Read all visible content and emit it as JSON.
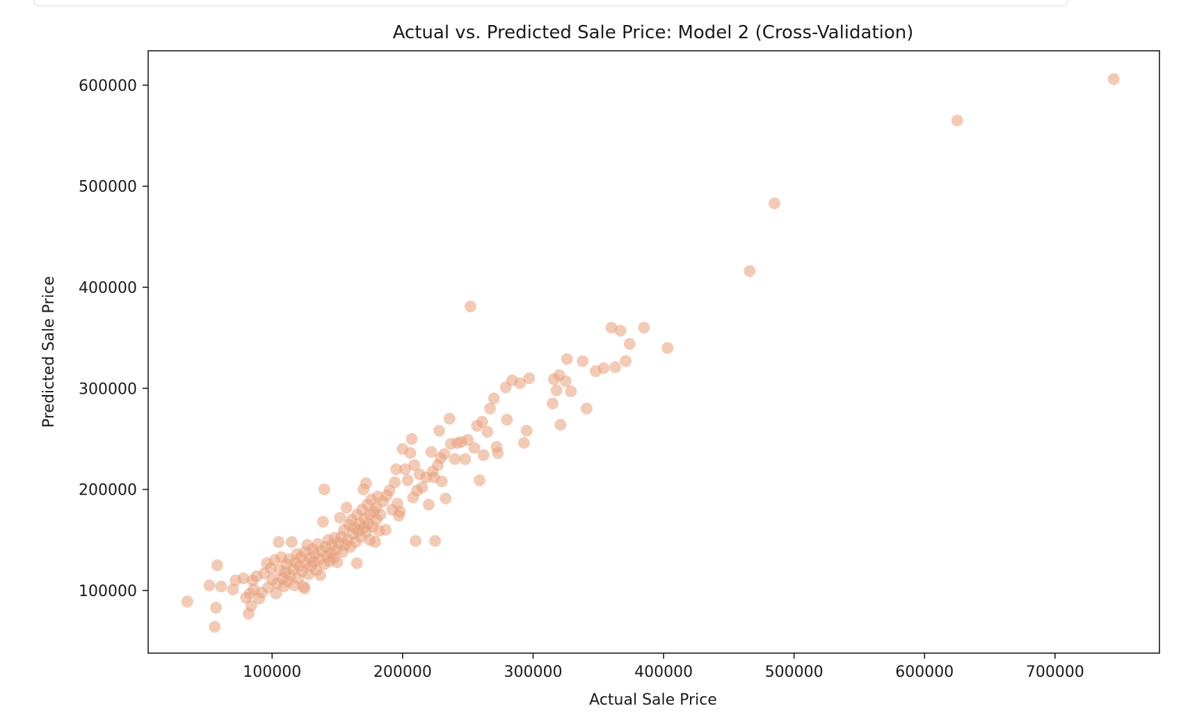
{
  "chart_data": {
    "type": "scatter",
    "title": "Actual vs. Predicted Sale Price: Model 2 (Cross-Validation)",
    "xlabel": "Actual Sale Price",
    "ylabel": "Predicted Sale Price",
    "xlim": [
      5000,
      780000
    ],
    "ylim": [
      38000,
      634000
    ],
    "xticks": [
      100000,
      200000,
      300000,
      400000,
      500000,
      600000,
      700000
    ],
    "yticks": [
      100000,
      200000,
      300000,
      400000,
      500000,
      600000
    ],
    "xtick_labels": [
      "100000",
      "200000",
      "300000",
      "400000",
      "500000",
      "600000",
      "700000"
    ],
    "ytick_labels": [
      "100000",
      "200000",
      "300000",
      "400000",
      "500000",
      "600000"
    ],
    "grid": false,
    "marker_color": "#e8a07c",
    "marker_alpha": 0.55,
    "points": [
      [
        35000,
        89000
      ],
      [
        52000,
        105000
      ],
      [
        56000,
        64000
      ],
      [
        57000,
        83000
      ],
      [
        58000,
        125000
      ],
      [
        61000,
        104000
      ],
      [
        70000,
        101000
      ],
      [
        72000,
        110000
      ],
      [
        78000,
        112000
      ],
      [
        80000,
        93000
      ],
      [
        82000,
        77000
      ],
      [
        83000,
        97000
      ],
      [
        84000,
        85000
      ],
      [
        85000,
        110000
      ],
      [
        86000,
        101000
      ],
      [
        88000,
        114000
      ],
      [
        90000,
        92000
      ],
      [
        92000,
        98000
      ],
      [
        94000,
        117000
      ],
      [
        96000,
        127000
      ],
      [
        97000,
        103000
      ],
      [
        99000,
        122000
      ],
      [
        100000,
        111000
      ],
      [
        102000,
        130000
      ],
      [
        103000,
        97000
      ],
      [
        104000,
        107000
      ],
      [
        105000,
        148000
      ],
      [
        106000,
        120000
      ],
      [
        107000,
        133000
      ],
      [
        108000,
        112000
      ],
      [
        109000,
        104000
      ],
      [
        110000,
        118000
      ],
      [
        111000,
        126000
      ],
      [
        112000,
        109000
      ],
      [
        113000,
        131000
      ],
      [
        114000,
        115000
      ],
      [
        115000,
        148000
      ],
      [
        116000,
        121000
      ],
      [
        117000,
        105000
      ],
      [
        118000,
        128000
      ],
      [
        119000,
        136000
      ],
      [
        120000,
        112000
      ],
      [
        121000,
        124000
      ],
      [
        122000,
        133000
      ],
      [
        123000,
        119000
      ],
      [
        124000,
        104000
      ],
      [
        125000,
        138000
      ],
      [
        125000,
        102000
      ],
      [
        126000,
        127000
      ],
      [
        127000,
        145000
      ],
      [
        128000,
        116000
      ],
      [
        129000,
        132000
      ],
      [
        130000,
        124000
      ],
      [
        131000,
        141000
      ],
      [
        132000,
        128000
      ],
      [
        133000,
        136000
      ],
      [
        134000,
        120000
      ],
      [
        135000,
        146000
      ],
      [
        136000,
        131000
      ],
      [
        137000,
        115000
      ],
      [
        138000,
        139000
      ],
      [
        139000,
        168000
      ],
      [
        140000,
        126000
      ],
      [
        140000,
        200000
      ],
      [
        141000,
        143000
      ],
      [
        142000,
        134000
      ],
      [
        143000,
        150000
      ],
      [
        144000,
        129000
      ],
      [
        145000,
        137000
      ],
      [
        146000,
        145000
      ],
      [
        147000,
        132000
      ],
      [
        148000,
        152000
      ],
      [
        149000,
        140000
      ],
      [
        150000,
        128000
      ],
      [
        151000,
        147000
      ],
      [
        152000,
        172000
      ],
      [
        153000,
        153000
      ],
      [
        154000,
        138000
      ],
      [
        155000,
        160000
      ],
      [
        156000,
        145000
      ],
      [
        157000,
        182000
      ],
      [
        158000,
        150000
      ],
      [
        159000,
        165000
      ],
      [
        160000,
        143000
      ],
      [
        161000,
        170000
      ],
      [
        162000,
        156000
      ],
      [
        163000,
        162000
      ],
      [
        164000,
        148000
      ],
      [
        165000,
        175000
      ],
      [
        165000,
        127000
      ],
      [
        166000,
        159000
      ],
      [
        167000,
        166000
      ],
      [
        168000,
        153000
      ],
      [
        169000,
        180000
      ],
      [
        170000,
        162000
      ],
      [
        170000,
        200000
      ],
      [
        171000,
        171000
      ],
      [
        172000,
        158000
      ],
      [
        172000,
        206000
      ],
      [
        173000,
        185000
      ],
      [
        174000,
        166000
      ],
      [
        175000,
        150000
      ],
      [
        175000,
        175000
      ],
      [
        176000,
        190000
      ],
      [
        177000,
        163000
      ],
      [
        178000,
        178000
      ],
      [
        179000,
        148000
      ],
      [
        180000,
        182000
      ],
      [
        180000,
        170000
      ],
      [
        181000,
        193000
      ],
      [
        182000,
        159000
      ],
      [
        183000,
        175000
      ],
      [
        185000,
        188000
      ],
      [
        187000,
        160000
      ],
      [
        188000,
        194000
      ],
      [
        190000,
        199000
      ],
      [
        192000,
        180000
      ],
      [
        194000,
        207000
      ],
      [
        195000,
        220000
      ],
      [
        196000,
        186000
      ],
      [
        197000,
        174000
      ],
      [
        198000,
        178000
      ],
      [
        200000,
        240000
      ],
      [
        202000,
        220000
      ],
      [
        204000,
        209000
      ],
      [
        206000,
        236000
      ],
      [
        207000,
        250000
      ],
      [
        208000,
        192000
      ],
      [
        209000,
        224000
      ],
      [
        210000,
        149000
      ],
      [
        211000,
        199000
      ],
      [
        213000,
        215000
      ],
      [
        215000,
        202000
      ],
      [
        218000,
        212000
      ],
      [
        220000,
        185000
      ],
      [
        222000,
        237000
      ],
      [
        223000,
        218000
      ],
      [
        224000,
        212000
      ],
      [
        225000,
        149000
      ],
      [
        227000,
        224000
      ],
      [
        228000,
        258000
      ],
      [
        229000,
        231000
      ],
      [
        230000,
        208000
      ],
      [
        232000,
        235000
      ],
      [
        233000,
        191000
      ],
      [
        236000,
        270000
      ],
      [
        237000,
        245000
      ],
      [
        240000,
        230000
      ],
      [
        242000,
        246000
      ],
      [
        245000,
        247000
      ],
      [
        248000,
        230000
      ],
      [
        250000,
        249000
      ],
      [
        252000,
        381000
      ],
      [
        255000,
        241000
      ],
      [
        257000,
        263000
      ],
      [
        259000,
        209000
      ],
      [
        261000,
        267000
      ],
      [
        262000,
        234000
      ],
      [
        265000,
        257000
      ],
      [
        267000,
        280000
      ],
      [
        270000,
        290000
      ],
      [
        272000,
        242000
      ],
      [
        273000,
        236000
      ],
      [
        279000,
        301000
      ],
      [
        280000,
        269000
      ],
      [
        284000,
        308000
      ],
      [
        290000,
        305000
      ],
      [
        293000,
        246000
      ],
      [
        295000,
        258000
      ],
      [
        297000,
        310000
      ],
      [
        315000,
        285000
      ],
      [
        316000,
        309000
      ],
      [
        318000,
        298000
      ],
      [
        320000,
        313000
      ],
      [
        321000,
        264000
      ],
      [
        325000,
        307000
      ],
      [
        326000,
        329000
      ],
      [
        329000,
        297000
      ],
      [
        338000,
        327000
      ],
      [
        341000,
        280000
      ],
      [
        348000,
        317000
      ],
      [
        354000,
        320000
      ],
      [
        360000,
        360000
      ],
      [
        363000,
        321000
      ],
      [
        367000,
        357000
      ],
      [
        371000,
        327000
      ],
      [
        374000,
        344000
      ],
      [
        385000,
        360000
      ],
      [
        403000,
        340000
      ],
      [
        466000,
        416000
      ],
      [
        485000,
        483000
      ],
      [
        625000,
        565000
      ],
      [
        745000,
        606000
      ]
    ]
  }
}
